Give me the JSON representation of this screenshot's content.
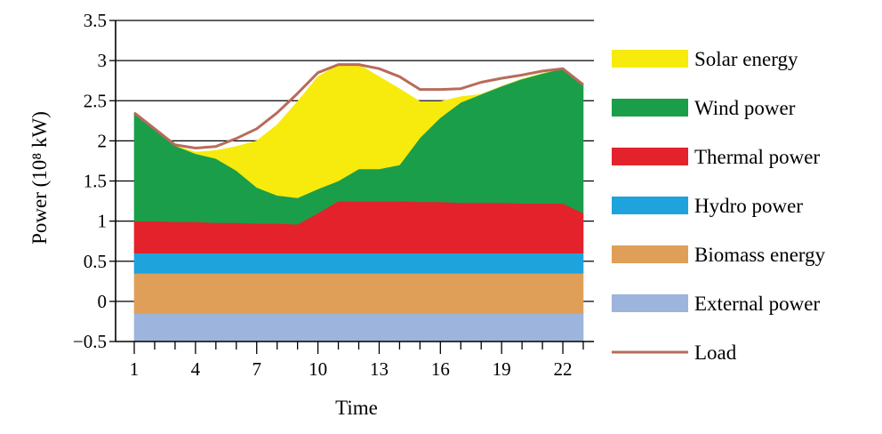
{
  "chart_data": {
    "type": "area",
    "stacked": true,
    "xlabel": "Time",
    "ylabel": "Power (10⁸ kW)",
    "ylim": [
      -0.5,
      3.5
    ],
    "xlim": [
      1,
      23
    ],
    "x_ticks": [
      1,
      4,
      7,
      10,
      13,
      16,
      19,
      22
    ],
    "x_tick_labels": [
      "1",
      "4",
      "7",
      "10",
      "13",
      "16",
      "19",
      "22"
    ],
    "y_ticks": [
      -0.5,
      0,
      0.5,
      1,
      1.5,
      2,
      2.5,
      3,
      3.5
    ],
    "y_tick_labels": [
      "−0.5",
      "0",
      "0.5",
      "1",
      "1.5",
      "2",
      "2.5",
      "3",
      "3.5"
    ],
    "grid": "horizontal",
    "legend_position": "right",
    "x": [
      1,
      2,
      3,
      4,
      5,
      6,
      7,
      8,
      9,
      10,
      11,
      12,
      13,
      14,
      15,
      16,
      17,
      18,
      19,
      20,
      21,
      22,
      23
    ],
    "baseline": -0.5,
    "series": [
      {
        "name": "External power",
        "color": "#9db4dc",
        "values": [
          0.35,
          0.35,
          0.35,
          0.35,
          0.35,
          0.35,
          0.35,
          0.35,
          0.35,
          0.35,
          0.35,
          0.35,
          0.35,
          0.35,
          0.35,
          0.35,
          0.35,
          0.35,
          0.35,
          0.35,
          0.35,
          0.35,
          0.35
        ]
      },
      {
        "name": "Biomass energy",
        "color": "#e09f59",
        "values": [
          0.5,
          0.5,
          0.5,
          0.5,
          0.5,
          0.5,
          0.5,
          0.5,
          0.5,
          0.5,
          0.5,
          0.5,
          0.5,
          0.5,
          0.5,
          0.5,
          0.5,
          0.5,
          0.5,
          0.5,
          0.5,
          0.5,
          0.5
        ]
      },
      {
        "name": "Hydro power",
        "color": "#1fa3dc",
        "values": [
          0.25,
          0.25,
          0.25,
          0.25,
          0.25,
          0.25,
          0.25,
          0.25,
          0.25,
          0.25,
          0.25,
          0.25,
          0.25,
          0.25,
          0.25,
          0.25,
          0.25,
          0.25,
          0.25,
          0.25,
          0.25,
          0.25,
          0.25
        ]
      },
      {
        "name": "Thermal power",
        "color": "#e3222b",
        "values": [
          0.4,
          0.4,
          0.39,
          0.39,
          0.38,
          0.38,
          0.37,
          0.37,
          0.36,
          0.5,
          0.65,
          0.65,
          0.65,
          0.65,
          0.64,
          0.64,
          0.63,
          0.63,
          0.63,
          0.62,
          0.62,
          0.62,
          0.5
        ]
      },
      {
        "name": "Wind power",
        "color": "#1a9e4a",
        "values": [
          1.35,
          1.15,
          0.95,
          0.85,
          0.8,
          0.65,
          0.45,
          0.35,
          0.33,
          0.3,
          0.25,
          0.4,
          0.4,
          0.45,
          0.8,
          1.05,
          1.25,
          1.35,
          1.45,
          1.55,
          1.62,
          1.68,
          1.6
        ]
      },
      {
        "name": "Solar energy",
        "color": "#f7ea0d",
        "values": [
          0,
          0,
          0,
          0.02,
          0.1,
          0.3,
          0.58,
          0.88,
          1.2,
          1.4,
          1.45,
          1.3,
          1.15,
          0.95,
          0.45,
          0.2,
          0.07,
          0,
          0,
          0,
          0,
          0,
          0
        ]
      }
    ],
    "load": {
      "name": "Load",
      "color": "#b86b5a",
      "values": [
        2.35,
        2.15,
        1.95,
        1.91,
        1.93,
        2.03,
        2.15,
        2.35,
        2.59,
        2.85,
        2.95,
        2.95,
        2.9,
        2.8,
        2.64,
        2.64,
        2.65,
        2.73,
        2.78,
        2.82,
        2.87,
        2.9,
        2.7
      ]
    }
  }
}
